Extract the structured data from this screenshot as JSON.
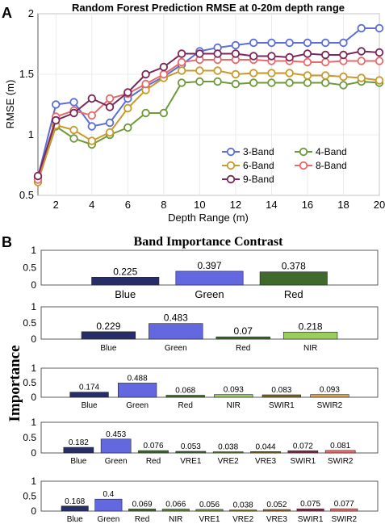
{
  "panel_a_letter": "A",
  "panel_b_letter": "B",
  "shared_ylabel": "Importance",
  "chart_data": [
    {
      "type": "line",
      "title": "Random Forest Prediction RMSE  at 0-20m depth range",
      "xlabel": "Depth Range (m)",
      "ylabel": "RMSE (m)",
      "xlim": [
        1,
        20
      ],
      "ylim": [
        0.5,
        2
      ],
      "xticks": [
        2,
        4,
        6,
        8,
        10,
        12,
        14,
        16,
        18,
        20
      ],
      "yticks": [
        0.5,
        1,
        1.5,
        2
      ],
      "legend_position": "lower-right",
      "x": [
        1,
        2,
        3,
        4,
        5,
        6,
        7,
        8,
        9,
        10,
        11,
        12,
        13,
        14,
        15,
        16,
        17,
        18,
        19,
        20
      ],
      "series": [
        {
          "name": "3-Band",
          "color": "#5b6fd6",
          "values": [
            0.65,
            1.25,
            1.27,
            1.07,
            1.1,
            1.3,
            1.4,
            1.48,
            1.58,
            1.69,
            1.72,
            1.74,
            1.76,
            1.76,
            1.76,
            1.76,
            1.76,
            1.76,
            1.88,
            1.88
          ]
        },
        {
          "name": "4-Band",
          "color": "#6e9a3c",
          "values": [
            0.62,
            1.07,
            0.97,
            0.92,
            1.0,
            1.06,
            1.18,
            1.18,
            1.43,
            1.44,
            1.44,
            1.42,
            1.43,
            1.43,
            1.43,
            1.43,
            1.43,
            1.41,
            1.44,
            1.43
          ]
        },
        {
          "name": "6-Band",
          "color": "#c99a2a",
          "values": [
            0.61,
            1.08,
            1.04,
            0.95,
            1.02,
            1.22,
            1.37,
            1.47,
            1.53,
            1.53,
            1.53,
            1.5,
            1.51,
            1.51,
            1.51,
            1.49,
            1.49,
            1.48,
            1.47,
            1.45
          ]
        },
        {
          "name": "8-Band",
          "color": "#e86a6a",
          "values": [
            0.63,
            1.15,
            1.2,
            1.16,
            1.3,
            1.34,
            1.42,
            1.5,
            1.6,
            1.62,
            1.62,
            1.62,
            1.62,
            1.61,
            1.61,
            1.6,
            1.6,
            1.61,
            1.61,
            1.61
          ]
        },
        {
          "name": "9-Band",
          "color": "#7a2858",
          "values": [
            0.66,
            1.12,
            1.18,
            1.3,
            1.23,
            1.35,
            1.5,
            1.56,
            1.67,
            1.67,
            1.67,
            1.67,
            1.65,
            1.65,
            1.64,
            1.67,
            1.66,
            1.66,
            1.69,
            1.68
          ]
        }
      ]
    },
    {
      "type": "bar",
      "title": "Band Importance Contrast",
      "ylim": [
        0,
        1
      ],
      "yticks": [
        0,
        0.5,
        1
      ],
      "categories": [
        "Blue",
        "Green",
        "Red"
      ],
      "values": [
        0.225,
        0.397,
        0.378
      ],
      "colors": [
        "#262d68",
        "#6468e0",
        "#3e6b2b"
      ]
    },
    {
      "type": "bar",
      "ylim": [
        0,
        1
      ],
      "yticks": [
        0,
        0.5,
        1
      ],
      "categories": [
        "Blue",
        "Green",
        "Red",
        "NIR"
      ],
      "values": [
        0.229,
        0.483,
        0.07,
        0.218
      ],
      "colors": [
        "#262d68",
        "#6468e0",
        "#3e6b2b",
        "#9ccc5a"
      ]
    },
    {
      "type": "bar",
      "ylim": [
        0,
        1
      ],
      "yticks": [
        0,
        0.5,
        1
      ],
      "categories": [
        "Blue",
        "Green",
        "Red",
        "NIR",
        "SWIR1",
        "SWIR2"
      ],
      "values": [
        0.174,
        0.488,
        0.068,
        0.093,
        0.083,
        0.093
      ],
      "colors": [
        "#262d68",
        "#6468e0",
        "#3e6b2b",
        "#9ccc5a",
        "#7a6a1c",
        "#e5a336"
      ]
    },
    {
      "type": "bar",
      "ylim": [
        0,
        1
      ],
      "yticks": [
        0,
        0.5,
        1
      ],
      "categories": [
        "Blue",
        "Green",
        "Red",
        "VRE1",
        "VRE2",
        "VRE3",
        "SWIR1",
        "SWIR2"
      ],
      "values": [
        0.182,
        0.453,
        0.076,
        0.053,
        0.038,
        0.044,
        0.072,
        0.081
      ],
      "colors": [
        "#262d68",
        "#6468e0",
        "#3e6b2b",
        "#3e6b2b",
        "#5a7a2c",
        "#7a6a1c",
        "#8a2a4a",
        "#e87070"
      ]
    },
    {
      "type": "bar",
      "ylim": [
        0,
        1
      ],
      "yticks": [
        0,
        0.5,
        1
      ],
      "categories": [
        "Blue",
        "Green",
        "Red",
        "NIR",
        "VRE1",
        "VRE2",
        "VRE3",
        "SWIR1",
        "SWIR2"
      ],
      "values": [
        0.168,
        0.4,
        0.069,
        0.066,
        0.056,
        0.038,
        0.052,
        0.075,
        0.077
      ],
      "colors": [
        "#262d68",
        "#6468e0",
        "#3e6b2b",
        "#5e8a30",
        "#7a9a3c",
        "#8a7a2c",
        "#9a6a2c",
        "#8a2a4a",
        "#e87070"
      ]
    }
  ]
}
